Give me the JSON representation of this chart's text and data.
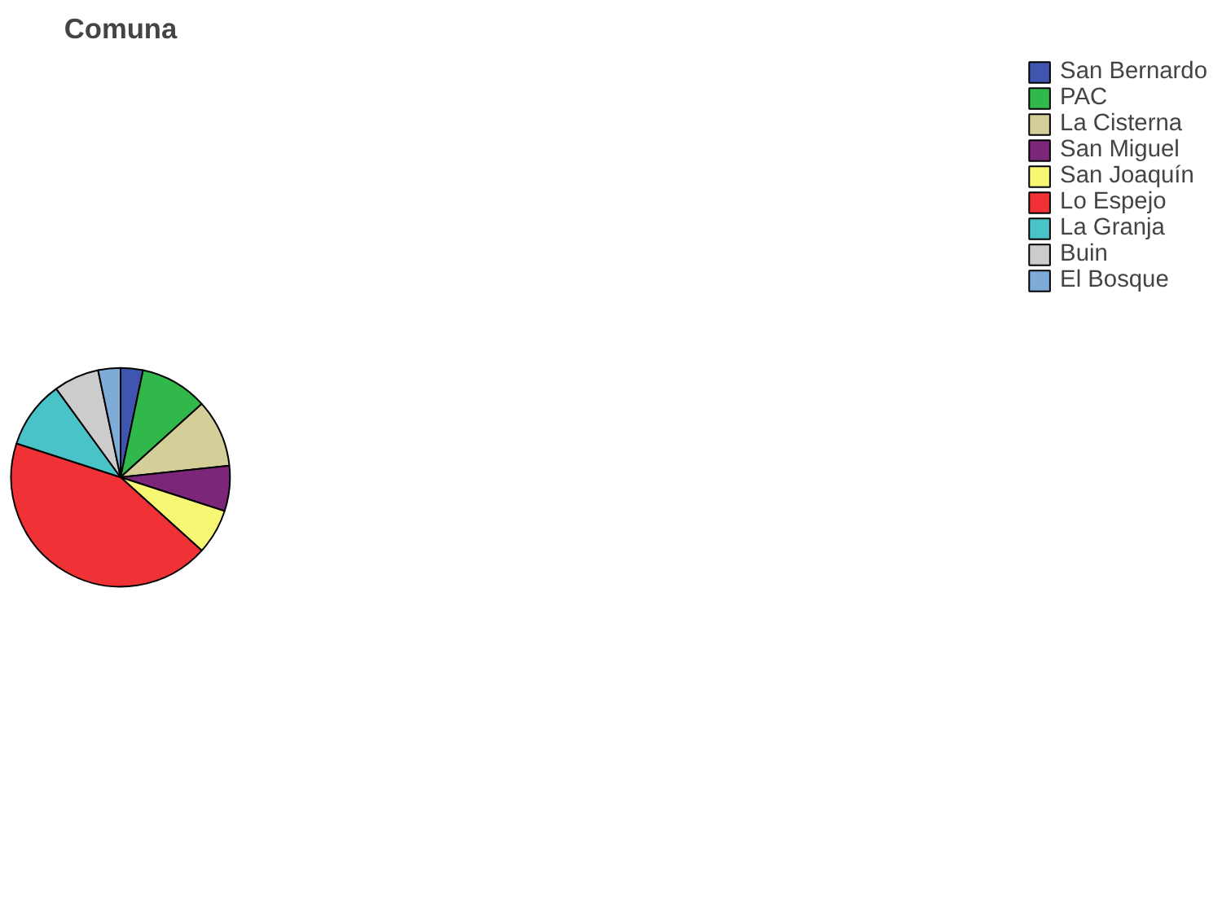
{
  "chart_data": {
    "type": "pie",
    "title": "Comuna",
    "categories": [
      "San Bernardo",
      "PAC",
      "La Cisterna",
      "San Miguel",
      "San Joaquín",
      "Lo Espejo",
      "La Granja",
      "Buin",
      "El Bosque"
    ],
    "values": [
      3.3,
      10,
      10,
      6.7,
      6.7,
      43.3,
      10,
      6.7,
      3.3
    ],
    "colors": [
      "#3f55b0",
      "#30b84a",
      "#d4ce98",
      "#7b2679",
      "#f8f774",
      "#f03237",
      "#4ac3c8",
      "#cccccc",
      "#7fabd9"
    ],
    "legend": "right"
  }
}
